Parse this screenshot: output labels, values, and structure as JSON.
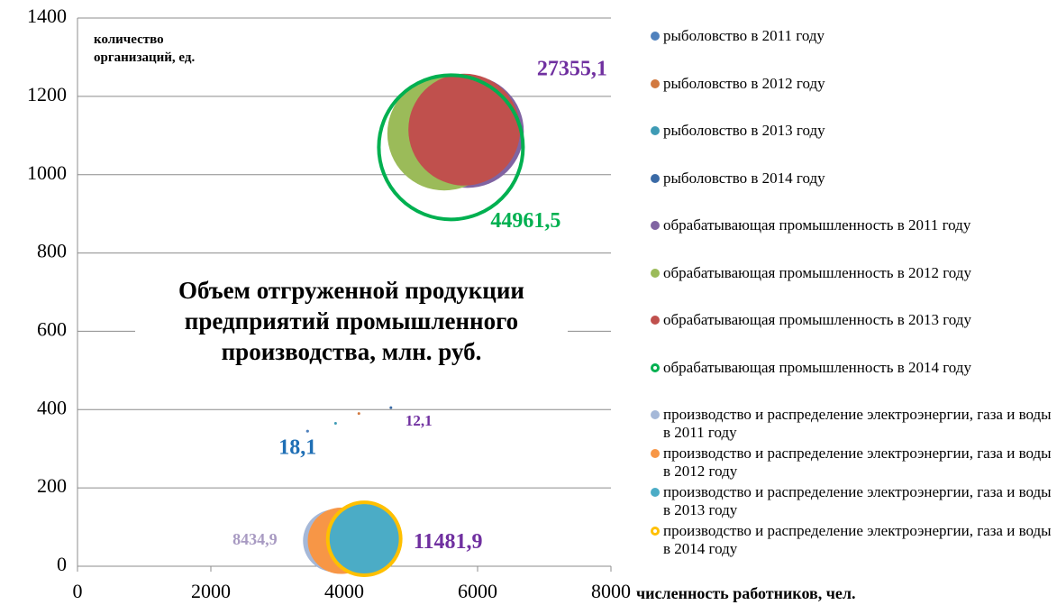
{
  "chart_data": {
    "type": "bubble",
    "title": "Объем отгруженной продукции\nпредприятий промышленного\nпроизводства, млн. руб.",
    "y_label": "количество\nорганизаций, ед.",
    "x_label": "численность работников, чел.",
    "xlim": [
      0,
      8000
    ],
    "xticks": [
      0,
      2000,
      4000,
      6000,
      8000
    ],
    "ylim": [
      0,
      1400
    ],
    "yticks": [
      0,
      200,
      400,
      600,
      800,
      1000,
      1200,
      1400
    ],
    "grid": true,
    "legend": "right",
    "series": [
      {
        "name": "рыболовство в 2011 году",
        "color": "#4f81bd",
        "x": [
          3450
        ],
        "y": [
          345
        ],
        "sizes": [
          18.1
        ],
        "value_labels": [
          "18,1"
        ],
        "label_color": "#1f6fb5"
      },
      {
        "name": "рыболовство в 2012 году",
        "color": "#d2793f",
        "x": [
          4220
        ],
        "y": [
          390
        ],
        "sizes": [
          15
        ]
      },
      {
        "name": "рыболовство в 2013 году",
        "color": "#3e9bb5",
        "x": [
          3870
        ],
        "y": [
          365
        ],
        "sizes": [
          14
        ]
      },
      {
        "name": "рыболовство в 2014 году",
        "color": "#3a6aa6",
        "x": [
          4700
        ],
        "y": [
          405
        ],
        "sizes": [
          12.1
        ],
        "value_labels": [
          "12,1"
        ],
        "label_color": "#7030a0"
      },
      {
        "name": "обрабатывающая промышленность в 2011 году",
        "color": "#8064a2",
        "x": [
          5850
        ],
        "y": [
          1110
        ],
        "sizes": [
          27355.1
        ],
        "value_labels": [
          "27355,1"
        ],
        "label_color": "#7030a0"
      },
      {
        "name": "обрабатывающая промышленность в 2012 году",
        "color": "#9bbb59",
        "x": [
          5500
        ],
        "y": [
          1105
        ],
        "sizes": [
          28000
        ]
      },
      {
        "name": "обрабатывающая промышленность в 2013 году",
        "color": "#c0504d",
        "x": [
          5800
        ],
        "y": [
          1115
        ],
        "sizes": [
          27000
        ]
      },
      {
        "name": "обрабатывающая промышленность в 2014 году",
        "color": "#00b050",
        "outline": true,
        "x": [
          5600
        ],
        "y": [
          1070
        ],
        "sizes": [
          44961.5
        ],
        "value_labels": [
          "44961,5"
        ],
        "label_color": "#00b050"
      },
      {
        "name": "производство и распределение электроэнергии, газа и воды в 2011 году",
        "color": "#a5b8d8",
        "x": [
          3850
        ],
        "y": [
          65
        ],
        "sizes": [
          8434.9
        ],
        "value_labels": [
          "8434,9"
        ],
        "label_color": "#a89ac2"
      },
      {
        "name": "производство и распределение электроэнергии, газа и воды в 2012 году",
        "color": "#f79646",
        "x": [
          3950
        ],
        "y": [
          65
        ],
        "sizes": [
          9500
        ]
      },
      {
        "name": "производство и распределение электроэнергии, газа и воды в 2013 году",
        "color": "#4bacc6",
        "x": [
          4300
        ],
        "y": [
          68
        ],
        "sizes": [
          11000
        ]
      },
      {
        "name": "производство и распределение электроэнергии, газа и воды в 2014 году",
        "color": "#ffc000",
        "outline": true,
        "x": [
          4300
        ],
        "y": [
          70
        ],
        "sizes": [
          11481.9
        ],
        "value_labels": [
          "11481,9"
        ],
        "label_color": "#7030a0"
      }
    ]
  }
}
